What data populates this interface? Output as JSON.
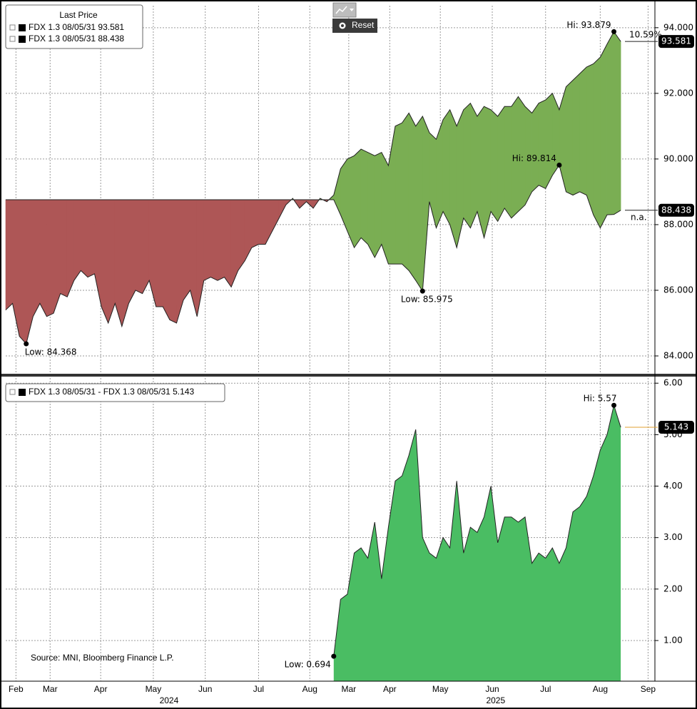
{
  "chart_data": [
    {
      "type": "range-area",
      "legend_title": "Last Price",
      "fill_above": "#7aae53",
      "fill_below": "#ae5656",
      "xlim": [
        0,
        95
      ],
      "ylim": [
        83.5,
        94.67
      ],
      "grid": true,
      "yticks": [
        {
          "value": 84,
          "label": "84.000"
        },
        {
          "value": 86,
          "label": "86.000"
        },
        {
          "value": 88,
          "label": "88.000"
        },
        {
          "value": 90,
          "label": "90.000"
        },
        {
          "value": 92,
          "label": "92.000"
        },
        {
          "value": 94,
          "label": "94.000"
        }
      ],
      "x": [
        0,
        1,
        2,
        3,
        4,
        5,
        6,
        7,
        8,
        9,
        10,
        11,
        12,
        13,
        14,
        15,
        16,
        17,
        18,
        19,
        20,
        21,
        22,
        23,
        24,
        25,
        26,
        27,
        28,
        29,
        30,
        31,
        32,
        33,
        34,
        35,
        36,
        37,
        38,
        39,
        40,
        41,
        42,
        43,
        44,
        45,
        46,
        47,
        48,
        49,
        50,
        51,
        52,
        53,
        54,
        55,
        56,
        57,
        58,
        59,
        60,
        61,
        62,
        63,
        64,
        65,
        66,
        67,
        68,
        69,
        70,
        71,
        72,
        73,
        74,
        75,
        76,
        77,
        78,
        79,
        80,
        81,
        82,
        83,
        84,
        85,
        86,
        87,
        88,
        89,
        90
      ],
      "series": [
        {
          "name": "FDX 1.3 08/05/31 93.581",
          "color": "#000000",
          "hi_label": "Hi: 93.879",
          "lo_label": "Low: 84.368",
          "change_label": "10.59%",
          "values": [
            85.4,
            85.6,
            84.6,
            84.368,
            85.2,
            85.6,
            85.2,
            85.3,
            85.9,
            85.8,
            86.3,
            86.6,
            86.4,
            86.5,
            85.5,
            85.0,
            85.6,
            84.9,
            85.6,
            86.0,
            85.9,
            86.3,
            85.5,
            85.5,
            85.1,
            85.0,
            85.7,
            86.0,
            85.2,
            86.3,
            86.4,
            86.3,
            86.4,
            86.1,
            86.6,
            86.9,
            87.3,
            87.4,
            87.4,
            87.8,
            88.2,
            88.6,
            88.8,
            88.5,
            88.7,
            88.5,
            88.8,
            88.7,
            88.9,
            89.7,
            90.0,
            90.1,
            90.3,
            90.2,
            90.1,
            90.2,
            89.8,
            91.0,
            91.1,
            91.4,
            91.0,
            91.3,
            90.8,
            90.6,
            91.2,
            91.5,
            91.0,
            91.5,
            91.7,
            91.3,
            91.6,
            91.5,
            91.3,
            91.6,
            91.6,
            91.9,
            91.6,
            91.4,
            91.7,
            91.8,
            92.0,
            91.5,
            92.2,
            92.4,
            92.6,
            92.8,
            92.9,
            93.1,
            93.5,
            93.879,
            93.581
          ]
        },
        {
          "name": "FDX 1.3 08/05/31 88.438",
          "color": "#000000",
          "hi_label": "Hi: 89.814",
          "lo_label": "Low: 85.975",
          "change_label": "n.a.",
          "values": [
            88.76,
            88.76,
            88.76,
            88.76,
            88.76,
            88.76,
            88.76,
            88.76,
            88.76,
            88.76,
            88.76,
            88.76,
            88.76,
            88.76,
            88.76,
            88.76,
            88.76,
            88.76,
            88.76,
            88.76,
            88.76,
            88.76,
            88.76,
            88.76,
            88.76,
            88.76,
            88.76,
            88.76,
            88.76,
            88.76,
            88.76,
            88.76,
            88.76,
            88.76,
            88.76,
            88.76,
            88.76,
            88.76,
            88.76,
            88.76,
            88.76,
            88.76,
            88.76,
            88.76,
            88.76,
            88.76,
            88.76,
            88.76,
            88.76,
            88.3,
            87.8,
            87.3,
            87.6,
            87.4,
            87.0,
            87.4,
            86.8,
            86.8,
            86.8,
            86.6,
            86.3,
            85.975,
            88.7,
            87.9,
            88.4,
            88.0,
            87.3,
            88.2,
            87.9,
            88.4,
            87.6,
            88.4,
            88.1,
            88.5,
            88.2,
            88.4,
            88.6,
            89.0,
            89.2,
            89.1,
            89.5,
            89.814,
            89.0,
            88.9,
            89.0,
            88.9,
            88.3,
            87.9,
            88.3,
            88.31,
            88.438
          ]
        }
      ]
    },
    {
      "type": "area",
      "source": "Source: MNI, Bloomberg Finance L.P.",
      "fill": "#4abd63",
      "last_line_color": "#e0a030",
      "xlim": [
        0,
        95
      ],
      "ylim": [
        0.21,
        6.1
      ],
      "grid": true,
      "yticks": [
        {
          "value": 1,
          "label": "1.00"
        },
        {
          "value": 2,
          "label": "2.00"
        },
        {
          "value": 3,
          "label": "3.00"
        },
        {
          "value": 4,
          "label": "4.00"
        },
        {
          "value": 5,
          "label": "5.00"
        },
        {
          "value": 6,
          "label": "6.00"
        }
      ],
      "xticks": [
        {
          "value": 1.5,
          "label": "Feb"
        },
        {
          "value": 6.5,
          "label": "Mar"
        },
        {
          "value": 13.9,
          "label": "Apr"
        },
        {
          "value": 21.6,
          "label": "May"
        },
        {
          "value": 29.2,
          "label": "Jun"
        },
        {
          "value": 37,
          "label": "Jul"
        },
        {
          "value": 44.5,
          "label": "Aug"
        },
        {
          "value": 50.2,
          "label": "Mar"
        },
        {
          "value": 56.2,
          "label": "Apr"
        },
        {
          "value": 63.6,
          "label": "May"
        },
        {
          "value": 71.2,
          "label": "Jun"
        },
        {
          "value": 79,
          "label": "Jul"
        },
        {
          "value": 87,
          "label": "Aug"
        },
        {
          "value": 94,
          "label": "Sep"
        }
      ],
      "xgroups": [
        {
          "value": 23.9,
          "label": "2024"
        },
        {
          "value": 71.7,
          "label": "2025"
        }
      ],
      "x": [
        0,
        1,
        2,
        3,
        4,
        5,
        6,
        7,
        8,
        9,
        10,
        11,
        12,
        13,
        14,
        15,
        16,
        17,
        18,
        19,
        20,
        21,
        22,
        23,
        24,
        25,
        26,
        27,
        28,
        29,
        30,
        31,
        32,
        33,
        34,
        35,
        36,
        37,
        38,
        39,
        40,
        41,
        42,
        43,
        44,
        45,
        46,
        47,
        48,
        49,
        50,
        51,
        52,
        53,
        54,
        55,
        56,
        57,
        58,
        59,
        60,
        61,
        62,
        63,
        64,
        65,
        66,
        67,
        68,
        69,
        70,
        71,
        72,
        73,
        74,
        75,
        76,
        77,
        78,
        79,
        80,
        81,
        82,
        83,
        84,
        85,
        86,
        87,
        88,
        89,
        90
      ],
      "series": [
        {
          "name": "FDX 1.3 08/05/31 - FDX 1.3 08/05/31 5.143",
          "color": "#000000",
          "hi_label": "Hi: 5.57",
          "lo_label": "Low: 0.694",
          "values": [
            null,
            null,
            null,
            null,
            null,
            null,
            null,
            null,
            null,
            null,
            null,
            null,
            null,
            null,
            null,
            null,
            null,
            null,
            null,
            null,
            null,
            null,
            null,
            null,
            null,
            null,
            null,
            null,
            null,
            null,
            null,
            null,
            null,
            null,
            null,
            null,
            null,
            null,
            null,
            null,
            null,
            null,
            null,
            null,
            null,
            null,
            null,
            null,
            0.694,
            1.8,
            1.9,
            2.7,
            2.8,
            2.6,
            3.3,
            2.2,
            3.2,
            4.1,
            4.2,
            4.6,
            5.1,
            3.0,
            2.7,
            2.6,
            3.0,
            2.8,
            4.1,
            2.7,
            3.2,
            3.1,
            3.4,
            4.0,
            2.9,
            3.4,
            3.4,
            3.3,
            3.4,
            2.5,
            2.7,
            2.6,
            2.8,
            2.5,
            2.8,
            3.5,
            3.6,
            3.8,
            4.2,
            4.7,
            5.0,
            5.57,
            5.143
          ]
        }
      ]
    }
  ],
  "toolbar": {
    "button": "Reset"
  }
}
